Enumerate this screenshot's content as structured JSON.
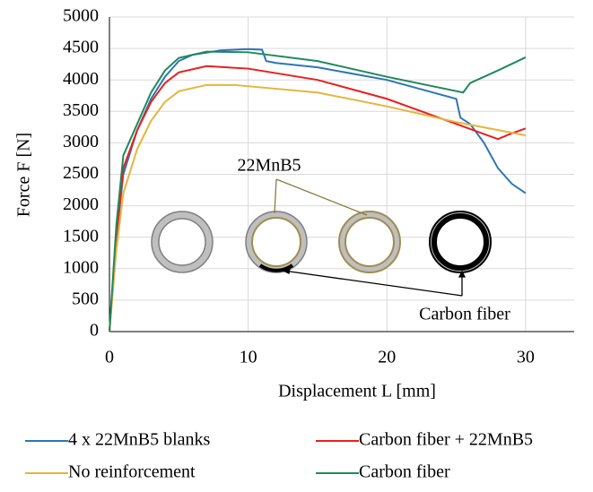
{
  "chart_data": {
    "type": "line",
    "xlabel": "Displacement L [mm]",
    "ylabel": "Force F [N]",
    "xlim": [
      0,
      33.5
    ],
    "xticks": [
      0,
      10,
      20,
      30
    ],
    "ylim": [
      0,
      5000
    ],
    "yticks": [
      0,
      500,
      1000,
      1500,
      2000,
      2500,
      3000,
      3500,
      4000,
      4500,
      5000
    ],
    "grid": true,
    "legend": "bottom",
    "annotations": [
      "22MnB5",
      "Carbon fiber"
    ],
    "series": [
      {
        "name": "4 x 22MnB5 blanks",
        "color": "#2e75b6",
        "x": [
          0,
          0.5,
          1,
          2,
          3,
          4,
          5,
          6,
          8,
          10,
          11,
          11.3,
          12,
          15,
          20,
          25,
          25.3,
          26,
          27,
          28,
          29,
          30
        ],
        "values": [
          0,
          1500,
          2500,
          3200,
          3700,
          4050,
          4300,
          4400,
          4470,
          4490,
          4480,
          4300,
          4270,
          4200,
          4000,
          3700,
          3400,
          3300,
          3000,
          2600,
          2350,
          2200
        ]
      },
      {
        "name": "Carbon fiber + 22MnB5",
        "color": "#e8201f",
        "x": [
          0,
          0.5,
          1,
          2,
          3,
          4,
          5,
          7,
          10,
          15,
          20,
          25,
          28,
          29,
          30
        ],
        "values": [
          0,
          1500,
          2600,
          3200,
          3650,
          3950,
          4120,
          4220,
          4180,
          4000,
          3700,
          3300,
          3060,
          3150,
          3230
        ]
      },
      {
        "name": "No reinforcement",
        "color": "#e6b43c",
        "x": [
          0,
          0.5,
          1,
          2,
          3,
          4,
          5,
          7,
          9,
          15,
          20,
          25,
          30
        ],
        "values": [
          0,
          1300,
          2200,
          2900,
          3350,
          3650,
          3820,
          3920,
          3920,
          3800,
          3580,
          3330,
          3120
        ]
      },
      {
        "name": "Carbon fiber",
        "color": "#1e8a5a",
        "x": [
          0,
          0.5,
          1,
          2,
          3,
          4,
          5,
          7,
          10,
          15,
          20,
          25.5,
          26,
          28,
          30
        ],
        "values": [
          0,
          1700,
          2800,
          3300,
          3800,
          4150,
          4350,
          4450,
          4440,
          4300,
          4050,
          3800,
          3950,
          4150,
          4360
        ]
      }
    ]
  }
}
